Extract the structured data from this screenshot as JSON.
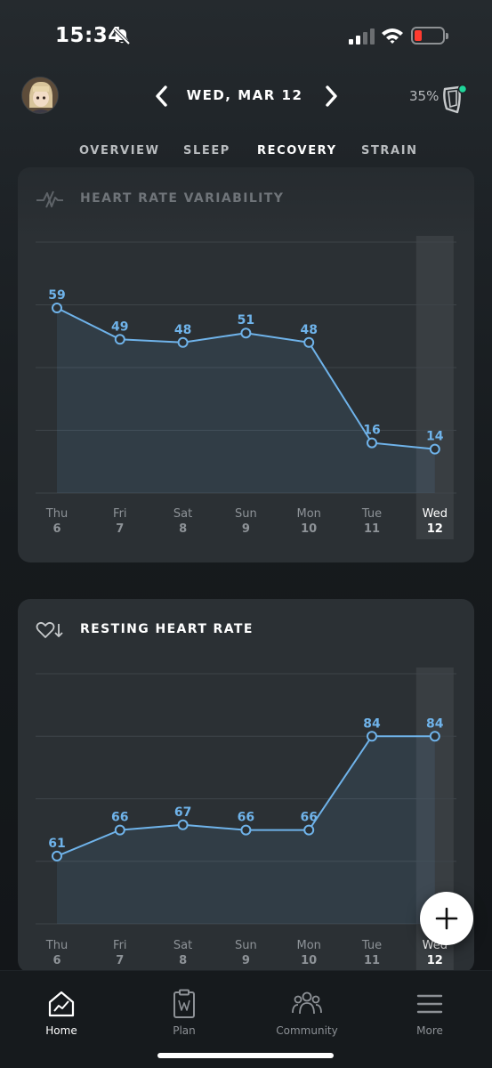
{
  "status_bar": {
    "time": "15:34"
  },
  "header": {
    "date": "WED, MAR 12",
    "battery_percent": "35%"
  },
  "tabs": [
    {
      "label": "OVERVIEW",
      "active": false
    },
    {
      "label": "SLEEP",
      "active": false
    },
    {
      "label": "RECOVERY",
      "active": true
    },
    {
      "label": "STRAIN",
      "active": false
    }
  ],
  "colors": {
    "accent": "#6fb3ea",
    "card": "#2b3034",
    "background": "#161a1d"
  },
  "hrv": {
    "title": "HEART RATE VARIABILITY"
  },
  "rhr": {
    "title": "RESTING HEART RATE"
  },
  "chart_data": [
    {
      "type": "line",
      "title": "HEART RATE VARIABILITY",
      "categories": [
        "Thu",
        "Fri",
        "Sat",
        "Sun",
        "Mon",
        "Tue",
        "Wed"
      ],
      "dates": [
        "6",
        "7",
        "8",
        "9",
        "10",
        "11",
        "12"
      ],
      "values": [
        59,
        49,
        48,
        51,
        48,
        16,
        14
      ],
      "highlight_index": 6,
      "ylim": [
        0,
        80
      ],
      "grid": true
    },
    {
      "type": "line",
      "title": "RESTING HEART RATE",
      "categories": [
        "Thu",
        "Fri",
        "Sat",
        "Sun",
        "Mon",
        "Tue",
        "Wed"
      ],
      "dates": [
        "6",
        "7",
        "8",
        "9",
        "10",
        "11",
        "12"
      ],
      "values": [
        61,
        66,
        67,
        66,
        66,
        84,
        84
      ],
      "highlight_index": 6,
      "ylim": [
        48,
        96
      ],
      "grid": true
    }
  ],
  "fab": {
    "icon": "plus-icon"
  },
  "bottom_nav": [
    {
      "label": "Home",
      "icon": "home-icon",
      "active": true
    },
    {
      "label": "Plan",
      "icon": "clipboard-icon",
      "active": false
    },
    {
      "label": "Community",
      "icon": "community-icon",
      "active": false
    },
    {
      "label": "More",
      "icon": "menu-icon",
      "active": false
    }
  ]
}
